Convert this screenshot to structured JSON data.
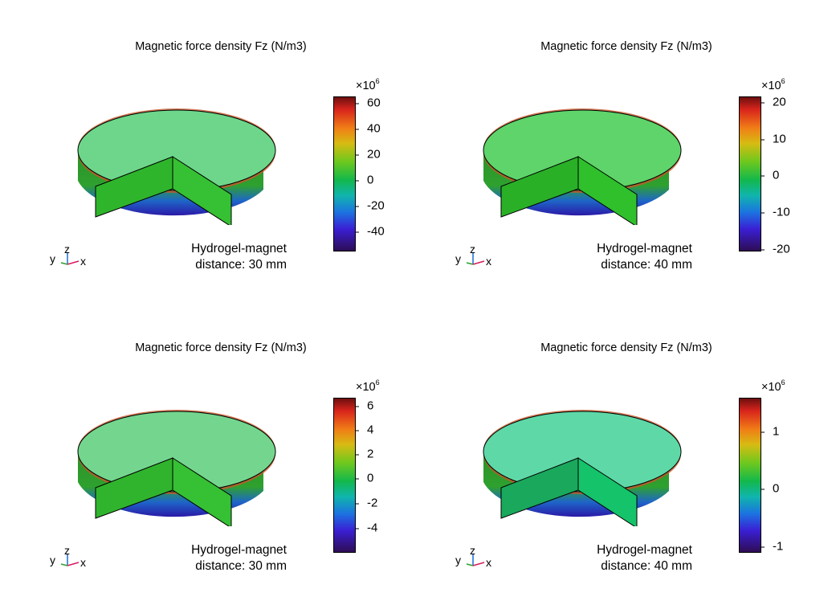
{
  "panels": [
    {
      "title": "Magnetic force density Fz (N/m3)",
      "multiplier_base": "×10",
      "multiplier_exp": "6",
      "ticks": [
        "60",
        "40",
        "20",
        "0",
        "-20",
        "-40"
      ],
      "note_line1": "Hydrogel-magnet",
      "note_line2": "distance: 30 mm",
      "axis_y": "y",
      "axis_z": "z",
      "axis_x": "x"
    },
    {
      "title": "Magnetic force density Fz (N/m3)",
      "multiplier_base": "×10",
      "multiplier_exp": "6",
      "ticks": [
        "20",
        "10",
        "0",
        "-10",
        "-20"
      ],
      "note_line1": "Hydrogel-magnet",
      "note_line2": "distance: 40 mm",
      "axis_y": "y",
      "axis_z": "z",
      "axis_x": "x"
    },
    {
      "title": "Magnetic force density Fz (N/m3)",
      "multiplier_base": "×10",
      "multiplier_exp": "6",
      "ticks": [
        "6",
        "4",
        "2",
        "0",
        "-2",
        "-4"
      ],
      "note_line1": "Hydrogel-magnet",
      "note_line2": "distance: 30 mm",
      "axis_y": "y",
      "axis_z": "z",
      "axis_x": "x"
    },
    {
      "title": "Magnetic force density Fz (N/m3)",
      "multiplier_base": "×10",
      "multiplier_exp": "6",
      "ticks": [
        "1",
        "0",
        "-1"
      ],
      "note_line1": "Hydrogel-magnet",
      "note_line2": "distance: 40 mm",
      "axis_y": "y",
      "axis_z": "z",
      "axis_x": "x"
    }
  ],
  "chart_data": [
    {
      "type": "heatmap",
      "title": "Magnetic force density Fz (N/m3)",
      "colorbar_multiplier": "×10^6",
      "colorbar_ticks": [
        60,
        40,
        20,
        0,
        -20,
        -40
      ],
      "colorbar_range": [
        -52,
        64
      ],
      "annotation": "Hydrogel-magnet distance: 30 mm",
      "top_face_color": "#6dd68a",
      "side_face_color": "#3cc23b"
    },
    {
      "type": "heatmap",
      "title": "Magnetic force density Fz (N/m3)",
      "colorbar_multiplier": "×10^6",
      "colorbar_ticks": [
        20,
        10,
        0,
        -10,
        -20
      ],
      "colorbar_range": [
        -22,
        22
      ],
      "annotation": "Hydrogel-magnet distance: 40 mm",
      "top_face_color": "#5ed46a",
      "side_face_color": "#2fc02c"
    },
    {
      "type": "heatmap",
      "title": "Magnetic force density Fz (N/m3)",
      "colorbar_multiplier": "×10^6",
      "colorbar_ticks": [
        6,
        4,
        2,
        0,
        -2,
        -4
      ],
      "colorbar_range": [
        -5.5,
        6.8
      ],
      "annotation": "Hydrogel-magnet distance: 30 mm",
      "top_face_color": "#74d68e",
      "side_face_color": "#36c033"
    },
    {
      "type": "heatmap",
      "title": "Magnetic force density Fz (N/m3)",
      "colorbar_multiplier": "×10^6",
      "colorbar_ticks": [
        1,
        0,
        -1
      ],
      "colorbar_range": [
        -1.2,
        1.6
      ],
      "annotation": "Hydrogel-magnet distance: 40 mm",
      "top_face_color": "#5fd8a8",
      "side_face_color": "#15c36a"
    }
  ]
}
